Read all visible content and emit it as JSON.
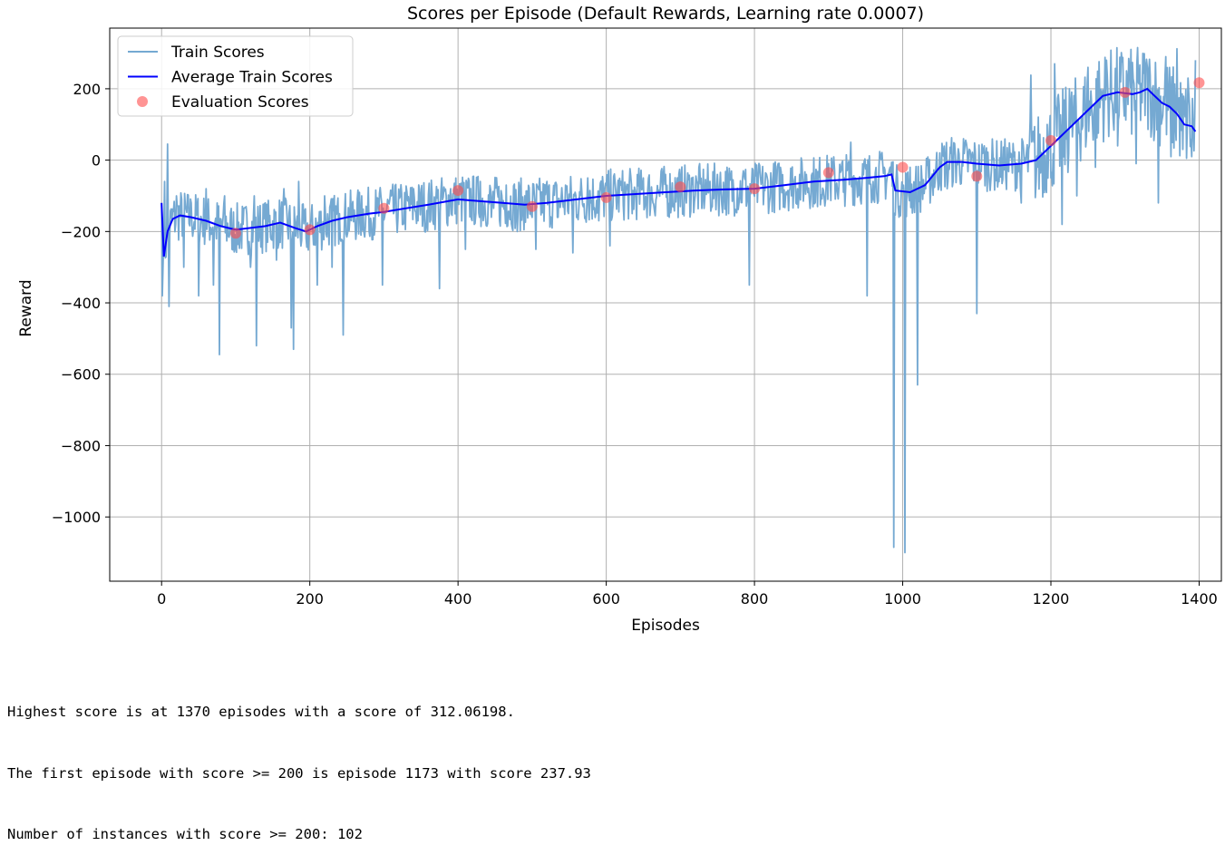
{
  "colors": {
    "train": "#75a9d2",
    "average": "#0000ff",
    "evaluation": "#ff4d4d",
    "grid": "#b0b0b0",
    "axes": "#000000"
  },
  "chart_data": {
    "type": "line",
    "title": "Scores per Episode (Default Rewards, Learning rate 0.0007)",
    "xlabel": "Episodes",
    "ylabel": "Reward",
    "xlim": [
      -70,
      1430
    ],
    "ylim": [
      -1180,
      370
    ],
    "xticks": [
      0,
      200,
      400,
      600,
      800,
      1000,
      1200,
      1400
    ],
    "xtick_labels": [
      "0",
      "200",
      "400",
      "600",
      "800",
      "1000",
      "1200",
      "1400"
    ],
    "yticks": [
      200,
      0,
      -200,
      -400,
      -600,
      -800,
      -1000
    ],
    "ytick_labels": [
      "200",
      "0",
      "−200",
      "−400",
      "−600",
      "−800",
      "−1000"
    ],
    "grid": true,
    "legend_position": "top-left",
    "series": [
      {
        "name": "Train Scores",
        "style": "line",
        "anchors": [
          [
            0,
            -120
          ],
          [
            1,
            -380
          ],
          [
            4,
            -60
          ],
          [
            8,
            45
          ],
          [
            10,
            -410
          ],
          [
            20,
            -100
          ],
          [
            30,
            -300
          ],
          [
            40,
            -120
          ],
          [
            50,
            -380
          ],
          [
            60,
            -80
          ],
          [
            70,
            -350
          ],
          [
            78,
            -545
          ],
          [
            85,
            -100
          ],
          [
            95,
            -250
          ],
          [
            110,
            -180
          ],
          [
            120,
            -300
          ],
          [
            125,
            -100
          ],
          [
            128,
            -520
          ],
          [
            140,
            -120
          ],
          [
            155,
            -280
          ],
          [
            165,
            -80
          ],
          [
            175,
            -470
          ],
          [
            178,
            -530
          ],
          [
            185,
            -60
          ],
          [
            195,
            -220
          ],
          [
            200,
            -180
          ],
          [
            210,
            -350
          ],
          [
            220,
            -100
          ],
          [
            230,
            -300
          ],
          [
            240,
            -150
          ],
          [
            245,
            -490
          ],
          [
            260,
            -140
          ],
          [
            270,
            -100
          ],
          [
            280,
            -200
          ],
          [
            290,
            -150
          ],
          [
            298,
            -350
          ],
          [
            310,
            -100
          ],
          [
            325,
            -180
          ],
          [
            340,
            -80
          ],
          [
            355,
            -200
          ],
          [
            370,
            -120
          ],
          [
            375,
            -360
          ],
          [
            390,
            -80
          ],
          [
            400,
            -100
          ],
          [
            410,
            -250
          ],
          [
            430,
            -60
          ],
          [
            445,
            -160
          ],
          [
            465,
            -70
          ],
          [
            480,
            -200
          ],
          [
            490,
            -100
          ],
          [
            505,
            -250
          ],
          [
            520,
            -60
          ],
          [
            535,
            -160
          ],
          [
            545,
            -70
          ],
          [
            555,
            -260
          ],
          [
            565,
            -100
          ],
          [
            575,
            -50
          ],
          [
            590,
            -170
          ],
          [
            600,
            -70
          ],
          [
            605,
            -240
          ],
          [
            620,
            -60
          ],
          [
            635,
            -150
          ],
          [
            650,
            -50
          ],
          [
            665,
            -140
          ],
          [
            680,
            -40
          ],
          [
            700,
            -130
          ],
          [
            715,
            -50
          ],
          [
            730,
            -100
          ],
          [
            750,
            -40
          ],
          [
            765,
            -150
          ],
          [
            785,
            -30
          ],
          [
            793,
            -350
          ],
          [
            805,
            -50
          ],
          [
            820,
            -120
          ],
          [
            835,
            -20
          ],
          [
            850,
            -100
          ],
          [
            870,
            -40
          ],
          [
            885,
            -130
          ],
          [
            900,
            -10
          ],
          [
            920,
            -90
          ],
          [
            930,
            50
          ],
          [
            945,
            -70
          ],
          [
            952,
            -380
          ],
          [
            960,
            -60
          ],
          [
            975,
            -20
          ],
          [
            988,
            -1085
          ],
          [
            993,
            -50
          ],
          [
            1000,
            -80
          ],
          [
            1003,
            -1100
          ],
          [
            1010,
            -20
          ],
          [
            1020,
            -630
          ],
          [
            1035,
            -50
          ],
          [
            1050,
            20
          ],
          [
            1060,
            -80
          ],
          [
            1080,
            -10
          ],
          [
            1100,
            -430
          ],
          [
            1105,
            -30
          ],
          [
            1110,
            40
          ],
          [
            1130,
            -60
          ],
          [
            1150,
            10
          ],
          [
            1160,
            -120
          ],
          [
            1170,
            30
          ],
          [
            1173,
            238
          ],
          [
            1180,
            -60
          ],
          [
            1195,
            100
          ],
          [
            1200,
            -50
          ],
          [
            1205,
            270
          ],
          [
            1215,
            -180
          ],
          [
            1225,
            200
          ],
          [
            1235,
            -100
          ],
          [
            1250,
            260
          ],
          [
            1260,
            -20
          ],
          [
            1275,
            280
          ],
          [
            1290,
            40
          ],
          [
            1305,
            285
          ],
          [
            1315,
            -10
          ],
          [
            1330,
            260
          ],
          [
            1345,
            -120
          ],
          [
            1355,
            290
          ],
          [
            1362,
            10
          ],
          [
            1370,
            312
          ],
          [
            1378,
            30
          ],
          [
            1385,
            230
          ],
          [
            1390,
            10
          ],
          [
            1395,
            280
          ]
        ]
      },
      {
        "name": "Average Train Scores",
        "style": "line",
        "x": [
          0,
          3,
          8,
          15,
          25,
          40,
          60,
          80,
          100,
          120,
          140,
          160,
          180,
          195,
          210,
          230,
          250,
          280,
          300,
          330,
          360,
          400,
          430,
          460,
          490,
          520,
          560,
          600,
          640,
          680,
          720,
          760,
          800,
          840,
          880,
          920,
          950,
          975,
          985,
          990,
          1010,
          1030,
          1050,
          1060,
          1080,
          1100,
          1130,
          1160,
          1180,
          1195,
          1210,
          1230,
          1250,
          1270,
          1290,
          1310,
          1320,
          1330,
          1340,
          1350,
          1360,
          1370,
          1380,
          1390,
          1395
        ],
        "y": [
          -120,
          -270,
          -200,
          -165,
          -155,
          -160,
          -170,
          -185,
          -195,
          -190,
          -185,
          -175,
          -190,
          -200,
          -185,
          -170,
          -160,
          -150,
          -145,
          -135,
          -125,
          -110,
          -115,
          -120,
          -125,
          -120,
          -110,
          -100,
          -95,
          -90,
          -85,
          -82,
          -80,
          -70,
          -60,
          -55,
          -50,
          -45,
          -40,
          -85,
          -90,
          -70,
          -20,
          -5,
          -5,
          -10,
          -15,
          -10,
          0,
          30,
          60,
          100,
          140,
          180,
          190,
          185,
          190,
          200,
          180,
          160,
          150,
          130,
          100,
          95,
          80
        ]
      },
      {
        "name": "Evaluation Scores",
        "style": "scatter",
        "x": [
          100,
          200,
          300,
          400,
          500,
          600,
          700,
          800,
          900,
          1000,
          1100,
          1200,
          1300,
          1400
        ],
        "y": [
          -205,
          -195,
          -135,
          -85,
          -130,
          -105,
          -75,
          -80,
          -35,
          -20,
          -45,
          55,
          190,
          217
        ]
      }
    ]
  },
  "output_lines": [
    "Highest score is at 1370 episodes with a score of 312.06198.",
    "The first episode with score >= 200 is episode 1173 with score 237.93",
    "Number of instances with score >= 200: 102"
  ]
}
